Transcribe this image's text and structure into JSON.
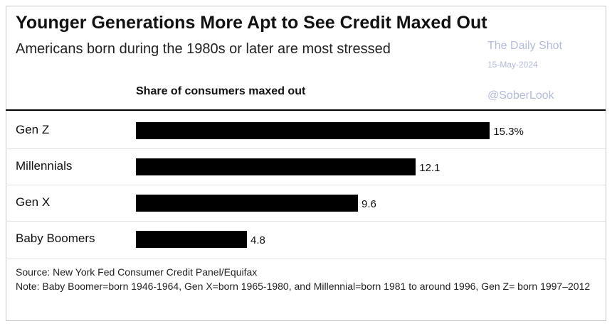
{
  "chart_data": {
    "type": "bar",
    "orientation": "horizontal",
    "title": "Younger Generations More Apt to See Credit Maxed Out",
    "subtitle": "Americans born during the 1980s or later are most stressed",
    "value_header": "Share of consumers maxed out",
    "categories": [
      "Gen Z",
      "Millennials",
      "Gen X",
      "Baby Boomers"
    ],
    "values": [
      15.3,
      12.1,
      9.6,
      4.8
    ],
    "value_labels": [
      "15.3%",
      "12.1",
      "9.6",
      "4.8"
    ],
    "color": "#000000",
    "source": "Source: New York Fed Consumer Credit Panel/Equifax",
    "note": "Note: Baby Boomer=born 1946-1964, Gen X=born 1965-1980, and Millennial=born 1981 to around 1996, Gen Z= born 1997–2012",
    "watermark": [
      "The Daily Shot",
      "15-May-2024",
      "@SoberLook"
    ]
  }
}
